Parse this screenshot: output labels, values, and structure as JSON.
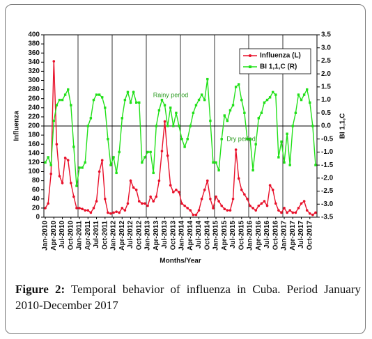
{
  "chart_data": {
    "type": "line",
    "xlabel": "Months/Year",
    "ylabel": "Influenza",
    "y2label": "BI 1,1,C",
    "categories": [
      "Jan-2010",
      null,
      null,
      "Apr-2010",
      null,
      null,
      "Jul-2010",
      null,
      null,
      "Oct-2010",
      null,
      null,
      "Jan-2011",
      null,
      null,
      "Apr-2011",
      null,
      null,
      "Jul-2011",
      null,
      null,
      "Oct-2011",
      null,
      null,
      "Jan-2012",
      null,
      null,
      "Apr-2012",
      null,
      null,
      "Jul-2012",
      null,
      null,
      "Oct-2012",
      null,
      null,
      "Jan-2013",
      null,
      null,
      "Apr-2013",
      null,
      null,
      "Jul-2013",
      null,
      null,
      "Oct-2013",
      null,
      null,
      "Jan-2014",
      null,
      null,
      "Apr-2014",
      null,
      null,
      "Jul-2014",
      null,
      null,
      "Oct-2014",
      null,
      null,
      "Jan-2015",
      null,
      null,
      "Apr-2015",
      null,
      null,
      "Jul-2015",
      null,
      null,
      "Oct-2015",
      null,
      null,
      "Jan-2016",
      null,
      null,
      "Apr-2016",
      null,
      null,
      "Jul-2016",
      null,
      null,
      "Oct-2016",
      null,
      null,
      "Jan-2017",
      null,
      null,
      "Apr-2017",
      null,
      null,
      "Jul-2017",
      null,
      null,
      "Oct-2017",
      null,
      null
    ],
    "series": [
      {
        "name": "Influenza (L)",
        "color": "#e8102a",
        "axis": "y",
        "marker": "circle",
        "values": [
          20,
          30,
          95,
          342,
          160,
          90,
          75,
          130,
          125,
          75,
          45,
          20,
          20,
          18,
          15,
          15,
          10,
          20,
          35,
          100,
          125,
          40,
          10,
          8,
          10,
          12,
          10,
          20,
          15,
          30,
          80,
          65,
          60,
          35,
          30,
          30,
          25,
          45,
          35,
          45,
          80,
          145,
          210,
          135,
          70,
          55,
          60,
          55,
          30,
          25,
          20,
          15,
          5,
          5,
          15,
          40,
          60,
          80,
          40,
          20,
          45,
          35,
          25,
          18,
          15,
          15,
          40,
          148,
          85,
          60,
          50,
          40,
          25,
          20,
          15,
          25,
          30,
          35,
          25,
          70,
          60,
          30,
          15,
          10,
          20,
          10,
          15,
          10,
          10,
          20,
          30,
          35,
          15,
          8,
          5,
          10
        ]
      },
      {
        "name": "BI 1,1,C (R)",
        "color": "#22e01a",
        "axis": "y2",
        "marker": "square",
        "values": [
          -1.4,
          -1.2,
          -1.5,
          0.2,
          0.8,
          1.0,
          1.0,
          1.2,
          1.4,
          0.8,
          -0.8,
          -2.3,
          -1.6,
          -1.6,
          -1.4,
          0.0,
          0.3,
          1.0,
          1.2,
          1.2,
          1.1,
          0.7,
          -0.5,
          -1.5,
          -1.2,
          -1.8,
          -1.0,
          0.3,
          1.0,
          1.3,
          0.9,
          1.3,
          0.9,
          0.9,
          -1.4,
          -1.2,
          -1.0,
          -1.0,
          -1.8,
          0.0,
          0.6,
          1.0,
          0.8,
          0.0,
          0.7,
          0.0,
          0.5,
          0.0,
          -0.5,
          -0.8,
          -0.5,
          0.0,
          0.5,
          0.8,
          1.0,
          1.2,
          1.0,
          1.8,
          0.2,
          -1.4,
          -1.4,
          -1.7,
          -0.5,
          0.4,
          0.2,
          0.6,
          0.8,
          1.5,
          1.6,
          1.0,
          0.5,
          -0.5,
          -0.5,
          -1.7,
          -0.7,
          0.3,
          0.5,
          0.9,
          1.0,
          1.1,
          1.3,
          1.2,
          -1.2,
          -0.6,
          -1.4,
          -0.3,
          -1.5,
          0.0,
          0.5,
          1.2,
          1.0,
          1.2,
          1.4,
          0.9,
          0.0,
          -1.5
        ]
      }
    ],
    "ylim": [
      0,
      400
    ],
    "yticks": [
      0,
      20,
      40,
      60,
      80,
      100,
      120,
      140,
      160,
      180,
      200,
      220,
      240,
      260,
      280,
      300,
      320,
      340,
      360,
      380,
      400
    ],
    "y2lim": [
      -3.5,
      3.5
    ],
    "y2ticks": [
      -3.5,
      {
        "value": -3,
        "label": "-3.0"
      },
      -2.5,
      {
        "value": -2,
        "label": "-2.0"
      },
      -1.5,
      {
        "value": -1,
        "label": "-1.0"
      },
      -0.5,
      {
        "value": 0,
        "label": "0.0"
      },
      0.5,
      {
        "value": 1,
        "label": "1.0"
      },
      1.5,
      {
        "value": 2,
        "label": "2.0"
      },
      2.5,
      {
        "value": 3,
        "label": "3.0"
      },
      3.5
    ],
    "reference_lines": [
      {
        "axis": "y2",
        "value": 0
      }
    ],
    "annotations": [
      "Rainy period",
      "Dry period"
    ],
    "legend": "upper right"
  },
  "caption": {
    "label": "Figure 2:",
    "text": " Temporal behavior of influenza in Cuba. Period January 2010-December 2017"
  }
}
